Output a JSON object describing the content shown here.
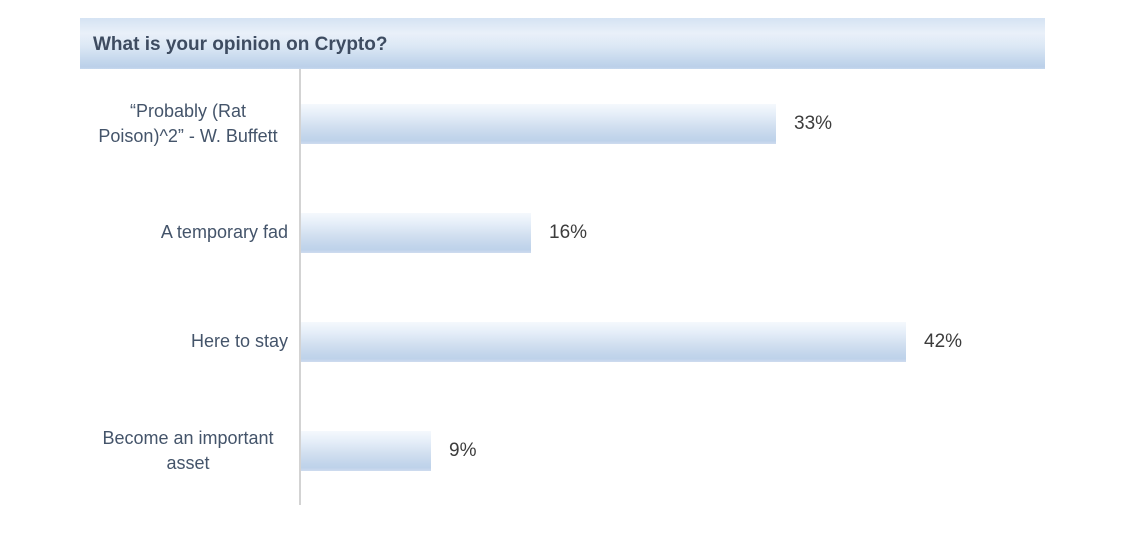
{
  "chart_data": {
    "type": "bar",
    "orientation": "horizontal",
    "title": "What is your opinion on Crypto?",
    "categories": [
      "“Probably (Rat Poison)^2” - W. Buffett",
      "A temporary fad",
      "Here to stay",
      "Become an important asset"
    ],
    "values": [
      33,
      16,
      42,
      9
    ],
    "value_labels": [
      "33%",
      "16%",
      "42%",
      "9%"
    ],
    "unit": "percent",
    "xlim": [
      0,
      56
    ],
    "grid": false,
    "legend": false,
    "colors": {
      "bar_gradient_top": "#f5f9fd",
      "bar_gradient_bottom": "#bed2ea",
      "title_band_top": "#d5e3f3",
      "title_band_bottom": "#bbd0e9",
      "title_text": "#3e4c61",
      "category_text": "#44546a",
      "value_text": "#3c3c3c",
      "axis_line": "#d3d3d3"
    }
  }
}
